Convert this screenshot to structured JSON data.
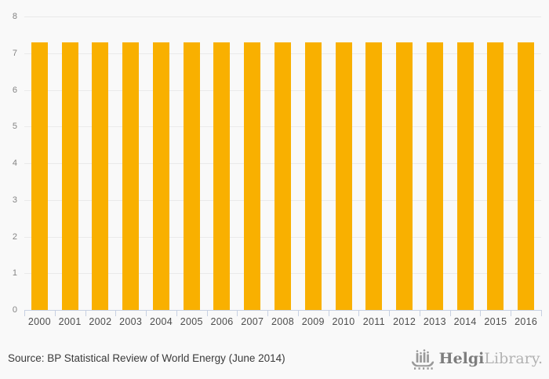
{
  "chart_data": {
    "type": "bar",
    "title": "",
    "categories": [
      "2000",
      "2001",
      "2002",
      "2003",
      "2004",
      "2005",
      "2006",
      "2007",
      "2008",
      "2009",
      "2010",
      "2011",
      "2012",
      "2013",
      "2014",
      "2015",
      "2016"
    ],
    "values": [
      7.3,
      7.3,
      7.3,
      7.3,
      7.3,
      7.3,
      7.3,
      7.3,
      7.3,
      7.3,
      7.3,
      7.3,
      7.3,
      7.3,
      7.3,
      7.3,
      7.3
    ],
    "xlabel": "",
    "ylabel": "",
    "ylim": [
      0,
      8
    ],
    "ytick_step": 1,
    "grid": true,
    "legend": "none"
  },
  "colors": {
    "bar": "#F9B000",
    "axis": "#C7D0E2",
    "gridline": "#EAEAEA",
    "background": "#F9F9F9",
    "ylabel_text": "#848484",
    "xlabel_text": "#4D4D4D",
    "source_text": "#3A3A3A",
    "logo_dark": "#7D7D7D",
    "logo_light": "#B2B2B2"
  },
  "footer": {
    "source": "Source: BP Statistical Review of World Energy (June 2014)",
    "logo": {
      "bold": "Helgi",
      "light": "Library."
    }
  }
}
